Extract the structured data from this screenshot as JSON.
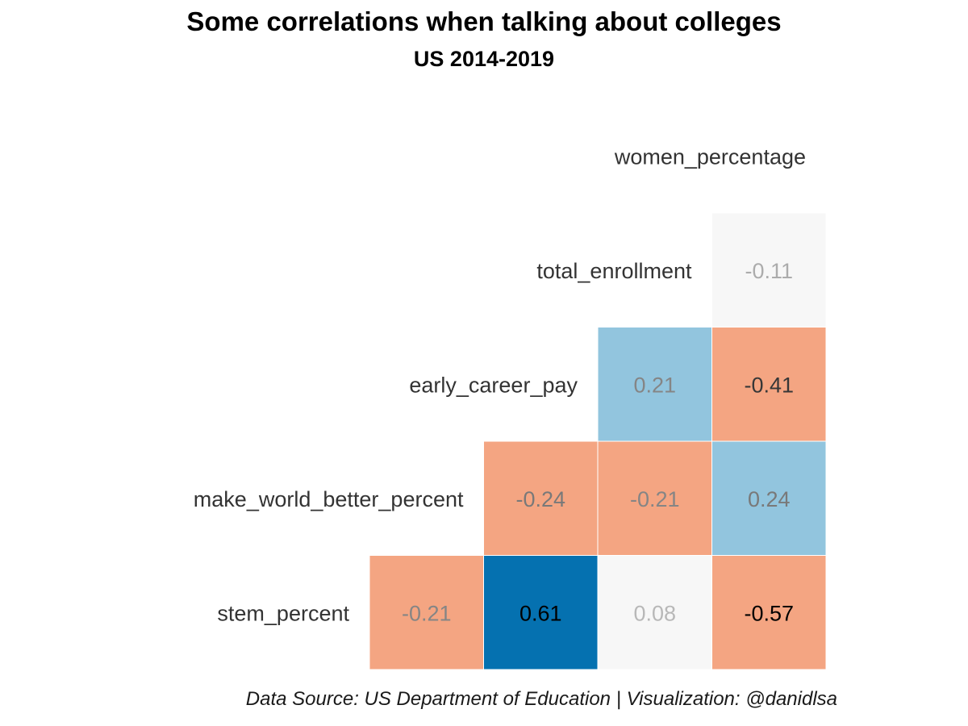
{
  "header": {
    "title": "Some correlations when talking about colleges",
    "subtitle": "US 2014-2019"
  },
  "footer": {
    "caption": "Data Source: US Department of Education | Visualization: @danidlsa"
  },
  "chart_data": {
    "type": "heatmap",
    "title": "Some correlations when talking about colleges",
    "subtitle": "US 2014-2019",
    "variables": [
      "stem_percent",
      "make_world_better_percent",
      "early_career_pay",
      "total_enrollment",
      "women_percentage"
    ],
    "layout": "lower-triangle correlation matrix",
    "color_scale": {
      "negative": "#F4A582",
      "neutral": "#F7F7F7",
      "positive_light": "#92C5DE",
      "positive_strong": "#0571B0"
    },
    "cells": [
      {
        "row": "total_enrollment",
        "col": "women_percentage",
        "value": -0.11,
        "label": "-0.11",
        "fill": "#F7F7F7"
      },
      {
        "row": "early_career_pay",
        "col": "total_enrollment",
        "value": 0.21,
        "label": "0.21",
        "fill": "#92C5DE"
      },
      {
        "row": "early_career_pay",
        "col": "women_percentage",
        "value": -0.41,
        "label": "-0.41",
        "fill": "#F4A582"
      },
      {
        "row": "make_world_better_percent",
        "col": "early_career_pay",
        "value": -0.24,
        "label": "-0.24",
        "fill": "#F4A582"
      },
      {
        "row": "make_world_better_percent",
        "col": "total_enrollment",
        "value": -0.21,
        "label": "-0.21",
        "fill": "#F4A582"
      },
      {
        "row": "make_world_better_percent",
        "col": "women_percentage",
        "value": 0.24,
        "label": "0.24",
        "fill": "#92C5DE"
      },
      {
        "row": "stem_percent",
        "col": "make_world_better_percent",
        "value": -0.21,
        "label": "-0.21",
        "fill": "#F4A582"
      },
      {
        "row": "stem_percent",
        "col": "early_career_pay",
        "value": 0.61,
        "label": "0.61",
        "fill": "#0571B0"
      },
      {
        "row": "stem_percent",
        "col": "total_enrollment",
        "value": 0.08,
        "label": "0.08",
        "fill": "#F7F7F7"
      },
      {
        "row": "stem_percent",
        "col": "women_percentage",
        "value": -0.57,
        "label": "-0.57",
        "fill": "#F4A582"
      }
    ]
  }
}
